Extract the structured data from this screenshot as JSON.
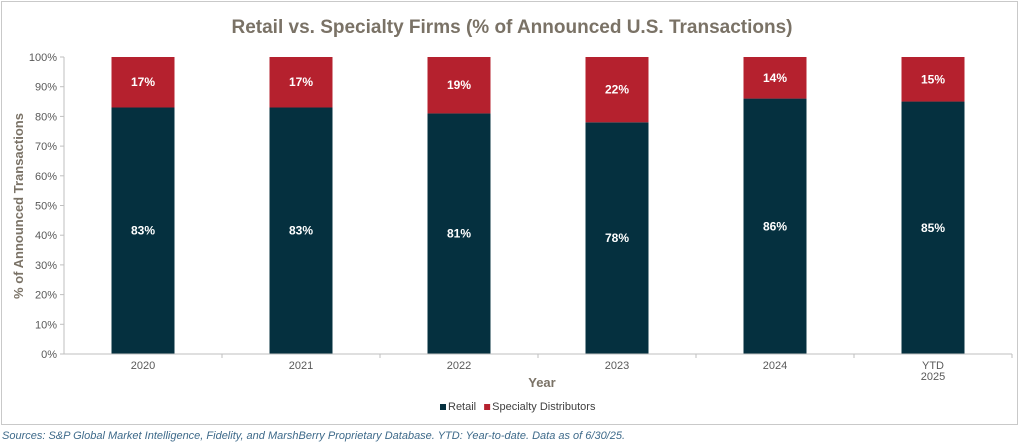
{
  "chart_data": {
    "type": "bar",
    "stacked": true,
    "title": "Retail vs. Specialty Firms  (% of Announced U.S. Transactions)",
    "xlabel": "Year",
    "ylabel": "% of Announced Transactions",
    "categories": [
      [
        "2020"
      ],
      [
        "2021"
      ],
      [
        "2022"
      ],
      [
        "2023"
      ],
      [
        "2024"
      ],
      [
        "YTD",
        "2025"
      ]
    ],
    "series": [
      {
        "name": "Retail",
        "color": "#05303f",
        "values": [
          83,
          83,
          81,
          78,
          86,
          85
        ],
        "labels": [
          "83%",
          "83%",
          "81%",
          "78%",
          "86%",
          "85%"
        ]
      },
      {
        "name": "Specialty Distributors",
        "color": "#b5212e",
        "values": [
          17,
          17,
          19,
          22,
          14,
          15
        ],
        "labels": [
          "17%",
          "17%",
          "19%",
          "22%",
          "14%",
          "15%"
        ]
      }
    ],
    "ylim": [
      0,
      100
    ],
    "yticks": [
      0,
      10,
      20,
      30,
      40,
      50,
      60,
      70,
      80,
      90,
      100
    ],
    "ytick_labels": [
      "0%",
      "10%",
      "20%",
      "30%",
      "40%",
      "50%",
      "60%",
      "70%",
      "80%",
      "90%",
      "100%"
    ],
    "grid": false,
    "legend_position": "bottom"
  },
  "source_note": "Sources: S&P Global Market Intelligence, Fidelity, and MarshBerry Proprietary Database. YTD: Year-to-date. Data as of 6/30/25."
}
